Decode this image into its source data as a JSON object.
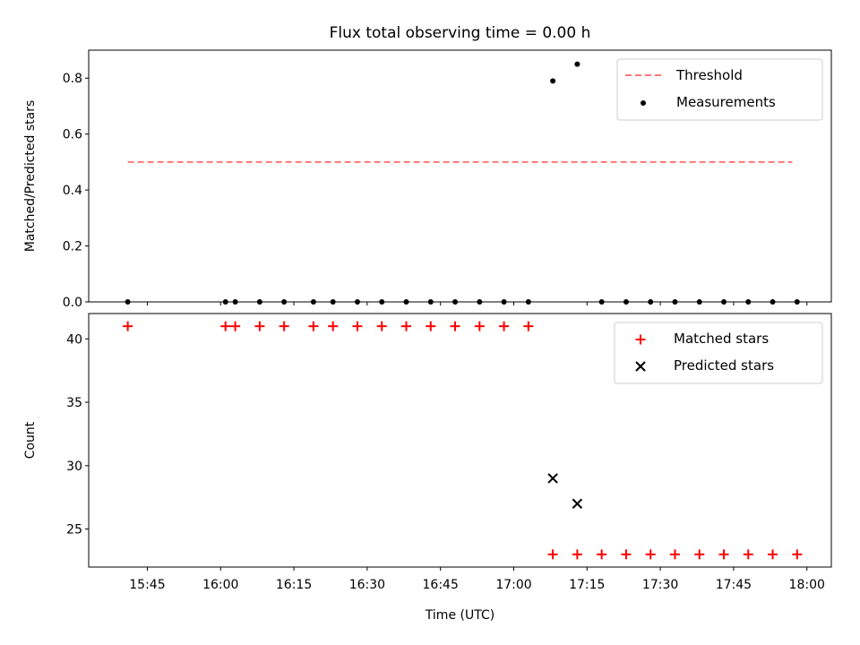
{
  "chart_data": [
    {
      "type": "scatter",
      "title": "Flux total observing time = 0.00 h",
      "xlabel": "",
      "ylabel": "Matched/Predicted stars",
      "xlim": [
        "15:33",
        "18:05"
      ],
      "ylim": [
        0,
        0.9
      ],
      "yticks": [
        "0.0",
        "0.2",
        "0.4",
        "0.6",
        "0.8"
      ],
      "legend_position": "upper right",
      "threshold": {
        "name": "Threshold",
        "value": 0.5,
        "x_start": "15:41",
        "x_end": "17:57",
        "color": "#ff7777",
        "style": "dashed"
      },
      "series": [
        {
          "name": "Measurements",
          "color": "#000000",
          "marker": "dot",
          "x": [
            "15:41",
            "16:01",
            "16:03",
            "16:08",
            "16:13",
            "16:19",
            "16:23",
            "16:28",
            "16:33",
            "16:38",
            "16:43",
            "16:48",
            "16:53",
            "16:58",
            "17:03",
            "17:08",
            "17:13",
            "17:18",
            "17:23",
            "17:28",
            "17:33",
            "17:38",
            "17:43",
            "17:48",
            "17:53",
            "17:58"
          ],
          "y": [
            0,
            0,
            0,
            0,
            0,
            0,
            0,
            0,
            0,
            0,
            0,
            0,
            0,
            0,
            0,
            0.79,
            0.85,
            0,
            0,
            0,
            0,
            0,
            0,
            0,
            0,
            0
          ]
        }
      ]
    },
    {
      "type": "scatter",
      "title": "",
      "xlabel": "Time (UTC)",
      "ylabel": "Count",
      "xlim": [
        "15:33",
        "18:05"
      ],
      "ylim": [
        22,
        42
      ],
      "yticks": [
        "25",
        "30",
        "35",
        "40"
      ],
      "xticks": [
        "15:45",
        "16:00",
        "16:15",
        "16:30",
        "16:45",
        "17:00",
        "17:15",
        "17:30",
        "17:45",
        "18:00"
      ],
      "legend_position": "upper right",
      "series": [
        {
          "name": "Matched stars",
          "color": "#ff0000",
          "marker": "plus",
          "x": [
            "15:41",
            "16:01",
            "16:03",
            "16:08",
            "16:13",
            "16:19",
            "16:23",
            "16:28",
            "16:33",
            "16:38",
            "16:43",
            "16:48",
            "16:53",
            "16:58",
            "17:03",
            "17:08",
            "17:13",
            "17:18",
            "17:23",
            "17:28",
            "17:33",
            "17:38",
            "17:43",
            "17:48",
            "17:53",
            "17:58"
          ],
          "y": [
            41,
            41,
            41,
            41,
            41,
            41,
            41,
            41,
            41,
            41,
            41,
            41,
            41,
            41,
            41,
            23,
            23,
            23,
            23,
            23,
            23,
            23,
            23,
            23,
            23,
            23
          ]
        },
        {
          "name": "Predicted stars",
          "color": "#000000",
          "marker": "x",
          "x": [
            "17:08",
            "17:13"
          ],
          "y": [
            29,
            27
          ]
        }
      ]
    }
  ]
}
